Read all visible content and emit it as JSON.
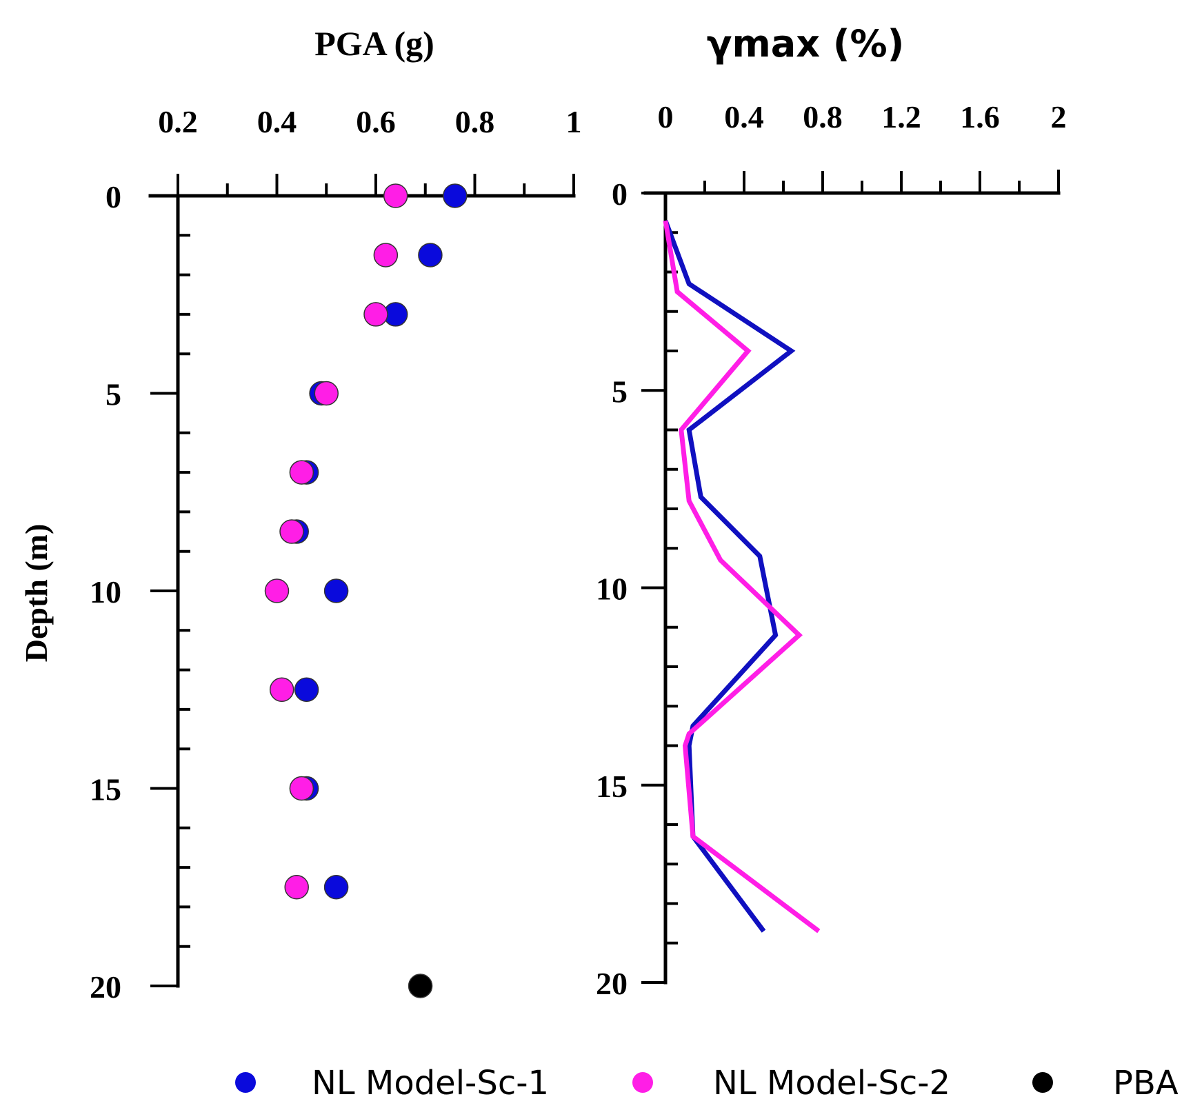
{
  "chart_data": [
    {
      "type": "scatter",
      "title": "PGA (g)",
      "ylabel": "Depth (m)",
      "x_ticks": [
        "0.2",
        "0.4",
        "0.6",
        "0.8",
        "1"
      ],
      "y_ticks": [
        "0",
        "5",
        "10",
        "15",
        "20"
      ],
      "xlim": [
        0.2,
        1.0
      ],
      "ylim": [
        20,
        0
      ],
      "series": [
        {
          "name": "NL Model-Sc-1",
          "color": "#0a0adc",
          "points": [
            {
              "x": 0.76,
              "y": 0.0
            },
            {
              "x": 0.71,
              "y": 1.5
            },
            {
              "x": 0.64,
              "y": 3.0
            },
            {
              "x": 0.49,
              "y": 5.0
            },
            {
              "x": 0.46,
              "y": 7.0
            },
            {
              "x": 0.44,
              "y": 8.5
            },
            {
              "x": 0.52,
              "y": 10.0
            },
            {
              "x": 0.46,
              "y": 12.5
            },
            {
              "x": 0.46,
              "y": 15.0
            },
            {
              "x": 0.52,
              "y": 17.5
            }
          ]
        },
        {
          "name": "NL Model-Sc-2",
          "color": "#ff1ee6",
          "points": [
            {
              "x": 0.64,
              "y": 0.0
            },
            {
              "x": 0.62,
              "y": 1.5
            },
            {
              "x": 0.6,
              "y": 3.0
            },
            {
              "x": 0.5,
              "y": 5.0
            },
            {
              "x": 0.45,
              "y": 7.0
            },
            {
              "x": 0.43,
              "y": 8.5
            },
            {
              "x": 0.4,
              "y": 10.0
            },
            {
              "x": 0.41,
              "y": 12.5
            },
            {
              "x": 0.45,
              "y": 15.0
            },
            {
              "x": 0.44,
              "y": 17.5
            }
          ]
        },
        {
          "name": "PBA",
          "color": "#000000",
          "points": [
            {
              "x": 0.69,
              "y": 20.0
            }
          ]
        }
      ]
    },
    {
      "type": "line",
      "title": "γmax (%)",
      "x_ticks": [
        "0",
        "0.4",
        "0.8",
        "1.2",
        "1.6",
        "2"
      ],
      "y_ticks": [
        "0",
        "5",
        "10",
        "15",
        "20"
      ],
      "xlim": [
        0,
        2
      ],
      "ylim": [
        20,
        0
      ],
      "series": [
        {
          "name": "NL Model-Sc-1",
          "color": "#1010c0",
          "points": [
            {
              "x": 0.0,
              "y": 0.7
            },
            {
              "x": 0.12,
              "y": 2.3
            },
            {
              "x": 0.64,
              "y": 4.0
            },
            {
              "x": 0.12,
              "y": 6.0
            },
            {
              "x": 0.18,
              "y": 7.7
            },
            {
              "x": 0.48,
              "y": 9.2
            },
            {
              "x": 0.56,
              "y": 11.2
            },
            {
              "x": 0.14,
              "y": 13.5
            },
            {
              "x": 0.12,
              "y": 14.0
            },
            {
              "x": 0.14,
              "y": 16.3
            },
            {
              "x": 0.5,
              "y": 18.7
            }
          ]
        },
        {
          "name": "NL Model-Sc-2",
          "color": "#ff1ee6",
          "points": [
            {
              "x": 0.0,
              "y": 0.7
            },
            {
              "x": 0.06,
              "y": 2.5
            },
            {
              "x": 0.42,
              "y": 4.0
            },
            {
              "x": 0.08,
              "y": 6.0
            },
            {
              "x": 0.12,
              "y": 7.8
            },
            {
              "x": 0.28,
              "y": 9.3
            },
            {
              "x": 0.68,
              "y": 11.2
            },
            {
              "x": 0.12,
              "y": 13.7
            },
            {
              "x": 0.1,
              "y": 14.0
            },
            {
              "x": 0.14,
              "y": 16.3
            },
            {
              "x": 0.78,
              "y": 18.7
            }
          ]
        }
      ]
    }
  ],
  "legend": [
    {
      "label": "NL Model-Sc-1",
      "color": "#0a0adc"
    },
    {
      "label": "NL Model-Sc-2",
      "color": "#ff1ee6"
    },
    {
      "label": "PBA",
      "color": "#000000"
    }
  ]
}
